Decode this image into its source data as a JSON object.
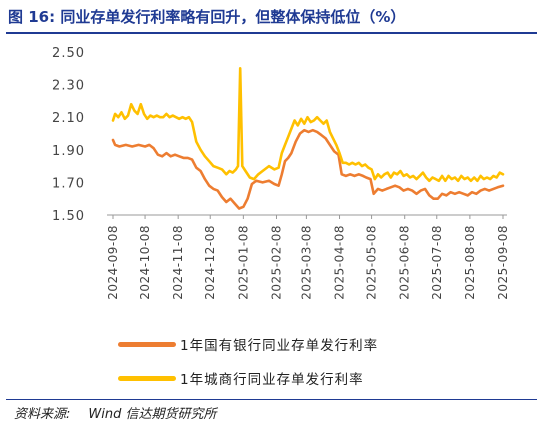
{
  "title": "图 16:  同业存单发行利率略有回升，但整体保持低位（%）",
  "source": {
    "prefix": "资料来源:",
    "name": "Wind  信达期货研究所"
  },
  "colors": {
    "title": "#1f3a93",
    "state_owned": "#ed7d31",
    "city_commercial": "#ffc000"
  },
  "chart_data": {
    "type": "line",
    "title": "",
    "xlabel": "",
    "ylabel": "",
    "ylim": [
      1.5,
      2.5
    ],
    "yticks": [
      "2.50",
      "2.30",
      "2.10",
      "1.90",
      "1.70",
      "1.50"
    ],
    "xticks": [
      "2024-09-08",
      "2024-10-08",
      "2024-11-08",
      "2024-12-08",
      "2025-01-08",
      "2025-02-08",
      "2025-03-08",
      "2025-04-08",
      "2025-05-08",
      "2025-06-08",
      "2025-07-08",
      "2025-08-08",
      "2025-09-08"
    ],
    "grid": false,
    "legend_position": "bottom",
    "series": [
      {
        "name": "1年国有银行同业存单发行利率",
        "color": "#ed7d31",
        "points": [
          [
            "2024-09-08",
            1.96
          ],
          [
            "2024-09-10",
            1.93
          ],
          [
            "2024-09-14",
            1.92
          ],
          [
            "2024-09-20",
            1.93
          ],
          [
            "2024-09-26",
            1.92
          ],
          [
            "2024-10-02",
            1.93
          ],
          [
            "2024-10-08",
            1.92
          ],
          [
            "2024-10-12",
            1.93
          ],
          [
            "2024-10-16",
            1.91
          ],
          [
            "2024-10-20",
            1.87
          ],
          [
            "2024-10-24",
            1.86
          ],
          [
            "2024-10-28",
            1.88
          ],
          [
            "2024-11-01",
            1.86
          ],
          [
            "2024-11-05",
            1.87
          ],
          [
            "2024-11-09",
            1.86
          ],
          [
            "2024-11-13",
            1.85
          ],
          [
            "2024-11-17",
            1.85
          ],
          [
            "2024-11-21",
            1.84
          ],
          [
            "2024-11-25",
            1.79
          ],
          [
            "2024-11-29",
            1.77
          ],
          [
            "2024-12-03",
            1.72
          ],
          [
            "2024-12-07",
            1.68
          ],
          [
            "2024-12-11",
            1.66
          ],
          [
            "2024-12-15",
            1.65
          ],
          [
            "2024-12-19",
            1.61
          ],
          [
            "2024-12-23",
            1.58
          ],
          [
            "2024-12-27",
            1.6
          ],
          [
            "2024-12-31",
            1.57
          ],
          [
            "2025-01-04",
            1.54
          ],
          [
            "2025-01-08",
            1.55
          ],
          [
            "2025-01-12",
            1.6
          ],
          [
            "2025-01-16",
            1.69
          ],
          [
            "2025-01-20",
            1.71
          ],
          [
            "2025-01-26",
            1.7
          ],
          [
            "2025-02-01",
            1.71
          ],
          [
            "2025-02-06",
            1.69
          ],
          [
            "2025-02-10",
            1.68
          ],
          [
            "2025-02-13",
            1.75
          ],
          [
            "2025-02-16",
            1.83
          ],
          [
            "2025-02-19",
            1.85
          ],
          [
            "2025-02-22",
            1.88
          ],
          [
            "2025-02-26",
            1.95
          ],
          [
            "2025-03-02",
            2.0
          ],
          [
            "2025-03-06",
            2.02
          ],
          [
            "2025-03-10",
            2.01
          ],
          [
            "2025-03-14",
            2.02
          ],
          [
            "2025-03-18",
            2.01
          ],
          [
            "2025-03-22",
            1.99
          ],
          [
            "2025-03-26",
            1.97
          ],
          [
            "2025-03-30",
            1.93
          ],
          [
            "2025-04-03",
            1.89
          ],
          [
            "2025-04-07",
            1.87
          ],
          [
            "2025-04-10",
            1.75
          ],
          [
            "2025-04-14",
            1.74
          ],
          [
            "2025-04-18",
            1.75
          ],
          [
            "2025-04-22",
            1.74
          ],
          [
            "2025-04-26",
            1.75
          ],
          [
            "2025-04-30",
            1.74
          ],
          [
            "2025-05-03",
            1.73
          ],
          [
            "2025-05-07",
            1.72
          ],
          [
            "2025-05-10",
            1.63
          ],
          [
            "2025-05-14",
            1.66
          ],
          [
            "2025-05-18",
            1.65
          ],
          [
            "2025-05-22",
            1.66
          ],
          [
            "2025-05-26",
            1.67
          ],
          [
            "2025-05-30",
            1.68
          ],
          [
            "2025-06-03",
            1.67
          ],
          [
            "2025-06-07",
            1.65
          ],
          [
            "2025-06-11",
            1.66
          ],
          [
            "2025-06-15",
            1.65
          ],
          [
            "2025-06-19",
            1.63
          ],
          [
            "2025-06-23",
            1.65
          ],
          [
            "2025-06-27",
            1.66
          ],
          [
            "2025-07-01",
            1.62
          ],
          [
            "2025-07-05",
            1.6
          ],
          [
            "2025-07-09",
            1.6
          ],
          [
            "2025-07-13",
            1.63
          ],
          [
            "2025-07-17",
            1.62
          ],
          [
            "2025-07-21",
            1.64
          ],
          [
            "2025-07-25",
            1.63
          ],
          [
            "2025-07-29",
            1.64
          ],
          [
            "2025-08-02",
            1.63
          ],
          [
            "2025-08-06",
            1.62
          ],
          [
            "2025-08-10",
            1.64
          ],
          [
            "2025-08-14",
            1.63
          ],
          [
            "2025-08-18",
            1.65
          ],
          [
            "2025-08-22",
            1.66
          ],
          [
            "2025-08-26",
            1.65
          ],
          [
            "2025-08-30",
            1.66
          ],
          [
            "2025-09-03",
            1.67
          ],
          [
            "2025-09-08",
            1.68
          ]
        ]
      },
      {
        "name": "1年城商行同业存单发行利率",
        "color": "#ffc000",
        "points": [
          [
            "2024-09-08",
            2.08
          ],
          [
            "2024-09-10",
            2.12
          ],
          [
            "2024-09-13",
            2.1
          ],
          [
            "2024-09-16",
            2.13
          ],
          [
            "2024-09-19",
            2.09
          ],
          [
            "2024-09-22",
            2.11
          ],
          [
            "2024-09-25",
            2.18
          ],
          [
            "2024-09-28",
            2.14
          ],
          [
            "2024-10-01",
            2.12
          ],
          [
            "2024-10-04",
            2.18
          ],
          [
            "2024-10-07",
            2.12
          ],
          [
            "2024-10-10",
            2.09
          ],
          [
            "2024-10-13",
            2.11
          ],
          [
            "2024-10-16",
            2.1
          ],
          [
            "2024-10-19",
            2.11
          ],
          [
            "2024-10-22",
            2.1
          ],
          [
            "2024-10-25",
            2.1
          ],
          [
            "2024-10-28",
            2.12
          ],
          [
            "2024-10-31",
            2.1
          ],
          [
            "2024-11-03",
            2.11
          ],
          [
            "2024-11-06",
            2.1
          ],
          [
            "2024-11-09",
            2.09
          ],
          [
            "2024-11-12",
            2.1
          ],
          [
            "2024-11-15",
            2.09
          ],
          [
            "2024-11-18",
            2.1
          ],
          [
            "2024-11-21",
            2.07
          ],
          [
            "2024-11-25",
            1.95
          ],
          [
            "2024-11-29",
            1.9
          ],
          [
            "2024-12-03",
            1.86
          ],
          [
            "2024-12-07",
            1.83
          ],
          [
            "2024-12-11",
            1.8
          ],
          [
            "2024-12-15",
            1.79
          ],
          [
            "2024-12-19",
            1.78
          ],
          [
            "2024-12-23",
            1.75
          ],
          [
            "2024-12-26",
            1.77
          ],
          [
            "2024-12-29",
            1.76
          ],
          [
            "2025-01-01",
            1.78
          ],
          [
            "2025-01-03",
            1.8
          ],
          [
            "2025-01-05",
            2.4
          ],
          [
            "2025-01-07",
            1.8
          ],
          [
            "2025-01-10",
            1.77
          ],
          [
            "2025-01-14",
            1.73
          ],
          [
            "2025-01-18",
            1.72
          ],
          [
            "2025-01-22",
            1.75
          ],
          [
            "2025-01-26",
            1.77
          ],
          [
            "2025-02-01",
            1.8
          ],
          [
            "2025-02-06",
            1.78
          ],
          [
            "2025-02-10",
            1.79
          ],
          [
            "2025-02-13",
            1.88
          ],
          [
            "2025-02-16",
            1.93
          ],
          [
            "2025-02-19",
            1.98
          ],
          [
            "2025-02-22",
            2.03
          ],
          [
            "2025-02-25",
            2.08
          ],
          [
            "2025-02-28",
            2.05
          ],
          [
            "2025-03-03",
            2.09
          ],
          [
            "2025-03-06",
            2.06
          ],
          [
            "2025-03-09",
            2.1
          ],
          [
            "2025-03-12",
            2.07
          ],
          [
            "2025-03-15",
            2.08
          ],
          [
            "2025-03-18",
            2.1
          ],
          [
            "2025-03-21",
            2.08
          ],
          [
            "2025-03-24",
            2.06
          ],
          [
            "2025-03-27",
            2.08
          ],
          [
            "2025-03-30",
            2.01
          ],
          [
            "2025-04-02",
            1.97
          ],
          [
            "2025-04-05",
            1.93
          ],
          [
            "2025-04-08",
            1.88
          ],
          [
            "2025-04-11",
            1.82
          ],
          [
            "2025-04-14",
            1.82
          ],
          [
            "2025-04-17",
            1.81
          ],
          [
            "2025-04-20",
            1.82
          ],
          [
            "2025-04-23",
            1.81
          ],
          [
            "2025-04-26",
            1.82
          ],
          [
            "2025-04-29",
            1.8
          ],
          [
            "2025-05-02",
            1.81
          ],
          [
            "2025-05-05",
            1.79
          ],
          [
            "2025-05-08",
            1.78
          ],
          [
            "2025-05-11",
            1.72
          ],
          [
            "2025-05-14",
            1.75
          ],
          [
            "2025-05-17",
            1.73
          ],
          [
            "2025-05-20",
            1.75
          ],
          [
            "2025-05-23",
            1.76
          ],
          [
            "2025-05-26",
            1.73
          ],
          [
            "2025-05-29",
            1.76
          ],
          [
            "2025-06-01",
            1.75
          ],
          [
            "2025-06-04",
            1.77
          ],
          [
            "2025-06-07",
            1.74
          ],
          [
            "2025-06-10",
            1.75
          ],
          [
            "2025-06-13",
            1.73
          ],
          [
            "2025-06-16",
            1.74
          ],
          [
            "2025-06-19",
            1.72
          ],
          [
            "2025-06-22",
            1.74
          ],
          [
            "2025-06-25",
            1.76
          ],
          [
            "2025-06-28",
            1.73
          ],
          [
            "2025-07-01",
            1.71
          ],
          [
            "2025-07-04",
            1.73
          ],
          [
            "2025-07-07",
            1.72
          ],
          [
            "2025-07-10",
            1.71
          ],
          [
            "2025-07-13",
            1.74
          ],
          [
            "2025-07-16",
            1.71
          ],
          [
            "2025-07-19",
            1.74
          ],
          [
            "2025-07-22",
            1.72
          ],
          [
            "2025-07-25",
            1.73
          ],
          [
            "2025-07-28",
            1.71
          ],
          [
            "2025-07-31",
            1.74
          ],
          [
            "2025-08-03",
            1.72
          ],
          [
            "2025-08-06",
            1.73
          ],
          [
            "2025-08-09",
            1.71
          ],
          [
            "2025-08-12",
            1.73
          ],
          [
            "2025-08-15",
            1.71
          ],
          [
            "2025-08-18",
            1.74
          ],
          [
            "2025-08-21",
            1.72
          ],
          [
            "2025-08-24",
            1.73
          ],
          [
            "2025-08-27",
            1.72
          ],
          [
            "2025-08-30",
            1.74
          ],
          [
            "2025-09-02",
            1.73
          ],
          [
            "2025-09-05",
            1.76
          ],
          [
            "2025-09-08",
            1.75
          ]
        ]
      }
    ]
  }
}
